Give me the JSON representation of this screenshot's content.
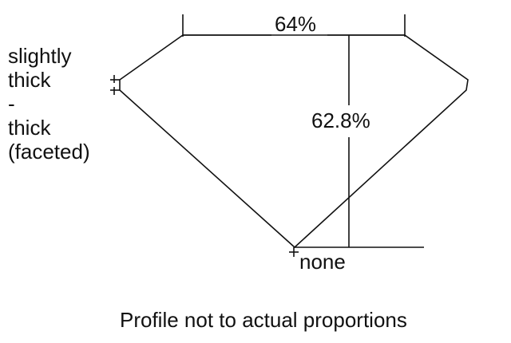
{
  "labels": {
    "table_percent": "64%",
    "depth_percent": "62.8%",
    "girdle": [
      "slightly",
      "thick",
      "-",
      "thick",
      "(faceted)"
    ],
    "culet": "none",
    "caption": "Profile not to actual proportions"
  },
  "colors": {
    "line": "#111111",
    "background": "#ffffff"
  }
}
